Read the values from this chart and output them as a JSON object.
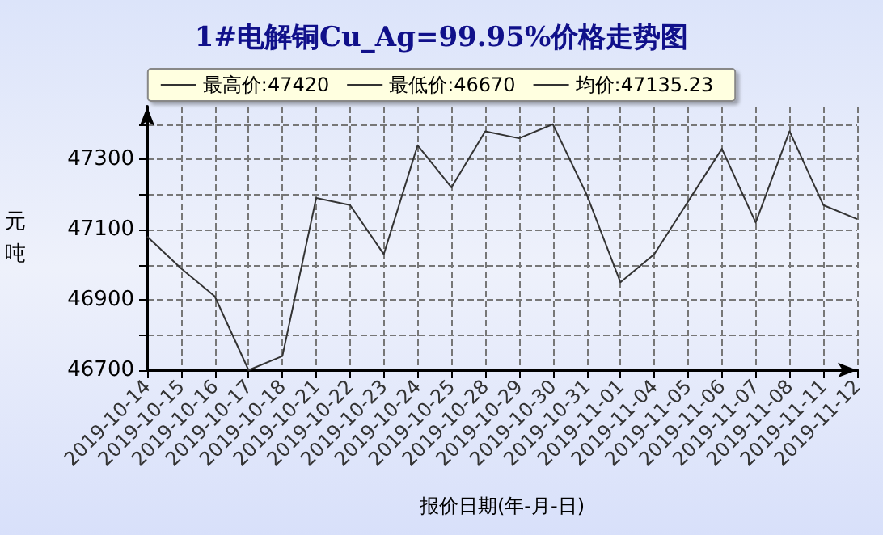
{
  "chart_data": {
    "type": "line",
    "title": "1#电解铜Cu_Ag=99.95%价格走势图",
    "xlabel": "报价日期(年-月-日)",
    "ylabel": "元吨",
    "annotations": [
      "最高价:47420",
      "最低价:46670",
      "均价:47135.23"
    ],
    "categories": [
      "2019-10-14",
      "2019-10-15",
      "2019-10-16",
      "2019-10-17",
      "2019-10-18",
      "2019-10-21",
      "2019-10-22",
      "2019-10-23",
      "2019-10-24",
      "2019-10-25",
      "2019-10-28",
      "2019-10-29",
      "2019-10-30",
      "2019-10-31",
      "2019-11-01",
      "2019-11-04",
      "2019-11-05",
      "2019-11-06",
      "2019-11-07",
      "2019-11-08",
      "2019-11-11",
      "2019-11-12"
    ],
    "series": [
      {
        "color": "#333333",
        "values": [
          47080,
          46990,
          46910,
          46700,
          46740,
          47190,
          47170,
          47030,
          47340,
          47220,
          47380,
          47360,
          47400,
          47200,
          46950,
          47030,
          47180,
          47330,
          47120,
          47380,
          47170,
          47130
        ]
      }
    ],
    "ylim": [
      46700,
      47450
    ],
    "yticks": [
      46700,
      {
        "value": 46800,
        "label": null
      },
      46900,
      {
        "value": 47000,
        "label": null
      },
      47100,
      {
        "value": 47200,
        "label": null
      },
      47300,
      {
        "value": 47400,
        "label": null
      }
    ],
    "grid": true,
    "marker": "none",
    "line_style": "solid"
  }
}
